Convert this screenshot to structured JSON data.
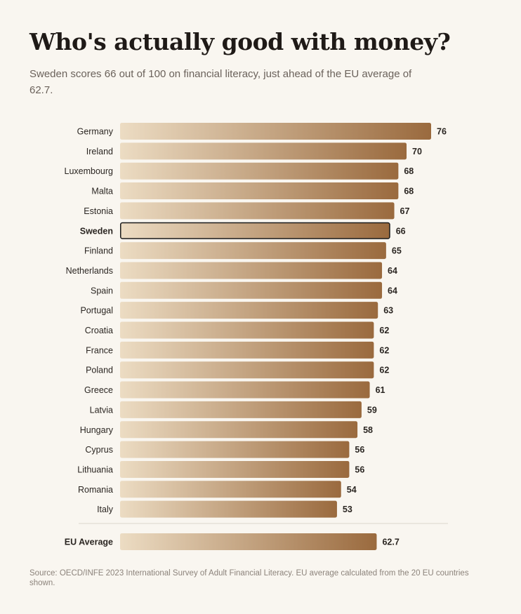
{
  "header": {
    "title": "Who's actually good with money?",
    "subtitle": "Sweden scores 66 out of 100 on financial literacy, just ahead of the EU average of 62.7."
  },
  "chart_data": {
    "type": "bar",
    "orientation": "horizontal",
    "categories": [
      "Germany",
      "Ireland",
      "Luxembourg",
      "Malta",
      "Estonia",
      "Sweden",
      "Finland",
      "Netherlands",
      "Spain",
      "Portugal",
      "Croatia",
      "France",
      "Poland",
      "Greece",
      "Latvia",
      "Hungary",
      "Cyprus",
      "Lithuania",
      "Romania",
      "Italy"
    ],
    "values": [
      76,
      70,
      68,
      68,
      67,
      66,
      65,
      64,
      64,
      63,
      62,
      62,
      62,
      61,
      59,
      58,
      56,
      56,
      54,
      53
    ],
    "highlight": "Sweden",
    "average": {
      "label": "EU Average",
      "value": 62.7
    },
    "xlim": [
      0,
      76
    ],
    "colors": {
      "gradient_start": "#ecdcc3",
      "gradient_end": "#9a6a3e",
      "highlight_border": "#1a1a1a"
    }
  },
  "footer": {
    "source": "Source: OECD/INFE 2023 International Survey of Adult Financial Literacy. EU average calculated from the 20 EU countries shown."
  }
}
